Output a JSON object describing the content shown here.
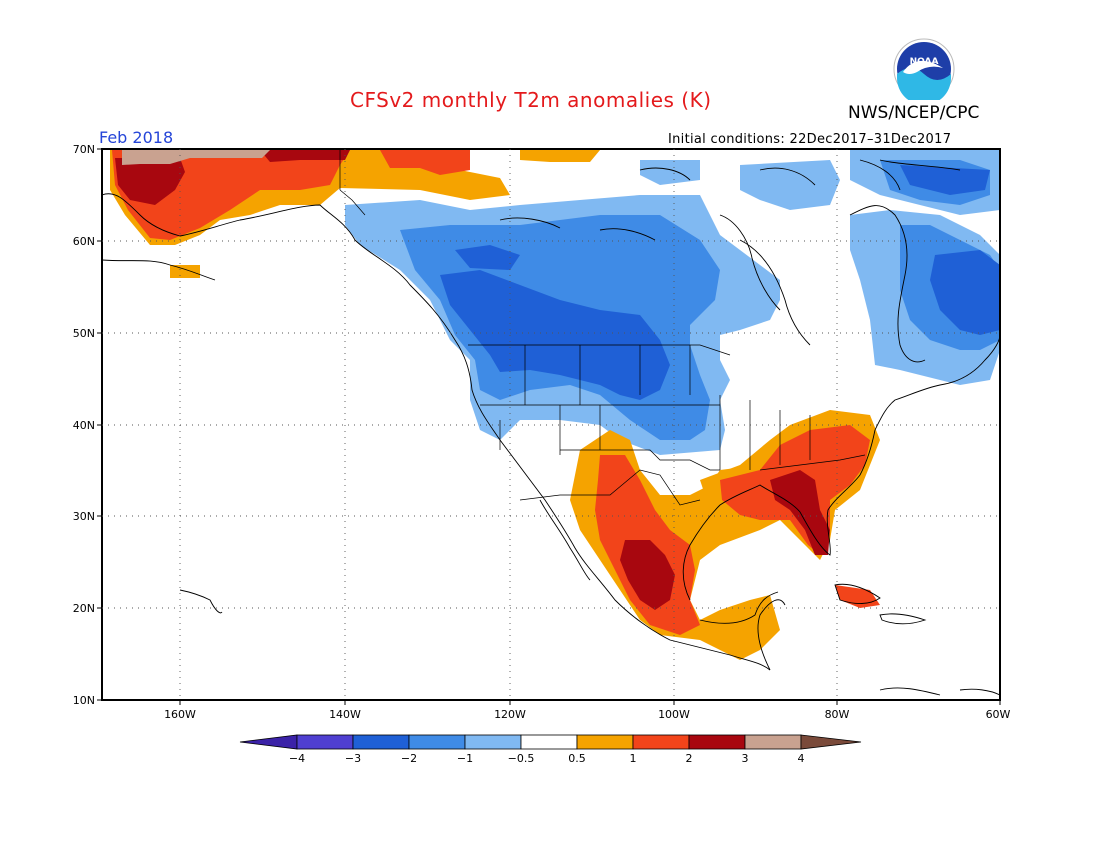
{
  "header": {
    "title": "CFSv2 monthly T2m anomalies (K)",
    "agency": "NWS/NCEP/CPC",
    "period": "Feb 2018",
    "initial_conditions": "Initial conditions: 22Dec2017–31Dec2017"
  },
  "logo": {
    "icon": "noaa-logo-icon",
    "text": "NOAA"
  },
  "map": {
    "lon_range": [
      -172,
      -60
    ],
    "lat_range": [
      10,
      70
    ],
    "lat_labels": [
      "10N",
      "20N",
      "30N",
      "40N",
      "50N",
      "60N",
      "70N"
    ],
    "lon_labels": [
      "160W",
      "140W",
      "120W",
      "100W",
      "80W",
      "60W"
    ]
  },
  "colorbar": {
    "labels": [
      "−4",
      "−3",
      "−2",
      "−1",
      "−0.5",
      "0.5",
      "1",
      "2",
      "3",
      "4"
    ],
    "colors": [
      "#3b22a8",
      "#4f3fd1",
      "#1f60d6",
      "#3f8be6",
      "#80b9f2",
      "#ffffff",
      "#f5a300",
      "#f2441a",
      "#a8070f",
      "#c9a290",
      "#7a4a3a"
    ]
  }
}
